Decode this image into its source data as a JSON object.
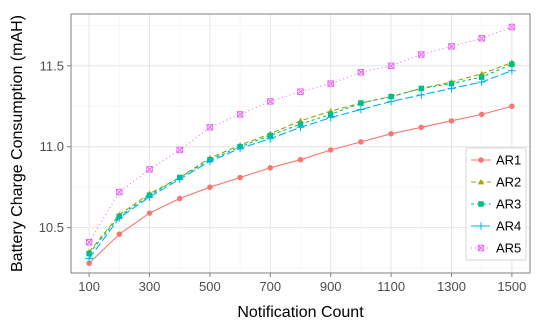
{
  "chart_data": {
    "type": "line",
    "title": "",
    "xlabel": "Notification Count",
    "ylabel": "Battery Charge Consumption (mAH)",
    "x": [
      100,
      200,
      300,
      400,
      500,
      600,
      700,
      800,
      900,
      1000,
      1100,
      1200,
      1300,
      1400,
      1500
    ],
    "x_ticks": [
      100,
      300,
      500,
      700,
      900,
      1100,
      1300,
      1500
    ],
    "y_ticks": [
      10.5,
      11.0,
      11.5
    ],
    "xlim": [
      40,
      1560
    ],
    "ylim": [
      10.22,
      11.82
    ],
    "grid": true,
    "legend_position": "right",
    "series": [
      {
        "name": "AR1",
        "color": "#f8766d",
        "marker": "circle",
        "dash": "",
        "values": [
          10.28,
          10.46,
          10.59,
          10.68,
          10.75,
          10.81,
          10.87,
          10.92,
          10.98,
          11.03,
          11.08,
          11.12,
          11.16,
          11.2,
          11.25
        ]
      },
      {
        "name": "AR2",
        "color": "#a3a500",
        "marker": "triangle",
        "dash": "5,3",
        "values": [
          10.35,
          10.58,
          10.71,
          10.81,
          10.93,
          11.01,
          11.08,
          11.16,
          11.22,
          11.27,
          11.31,
          11.36,
          11.4,
          11.45,
          11.52
        ]
      },
      {
        "name": "AR3",
        "color": "#00bf7d",
        "marker": "square",
        "dash": "3,3",
        "values": [
          10.34,
          10.57,
          10.7,
          10.81,
          10.92,
          11.0,
          11.07,
          11.14,
          11.2,
          11.27,
          11.31,
          11.36,
          11.39,
          11.43,
          11.51
        ]
      },
      {
        "name": "AR4",
        "color": "#00b0f6",
        "marker": "plus",
        "dash": "8,3",
        "values": [
          10.31,
          10.56,
          10.69,
          10.8,
          10.91,
          10.99,
          11.05,
          11.12,
          11.18,
          11.23,
          11.28,
          11.32,
          11.36,
          11.4,
          11.47
        ]
      },
      {
        "name": "AR5",
        "color": "#e76bf3",
        "marker": "boxx",
        "dash": "1,3",
        "values": [
          10.41,
          10.72,
          10.86,
          10.98,
          11.12,
          11.2,
          11.28,
          11.34,
          11.39,
          11.46,
          11.5,
          11.57,
          11.62,
          11.67,
          11.74
        ]
      }
    ]
  }
}
